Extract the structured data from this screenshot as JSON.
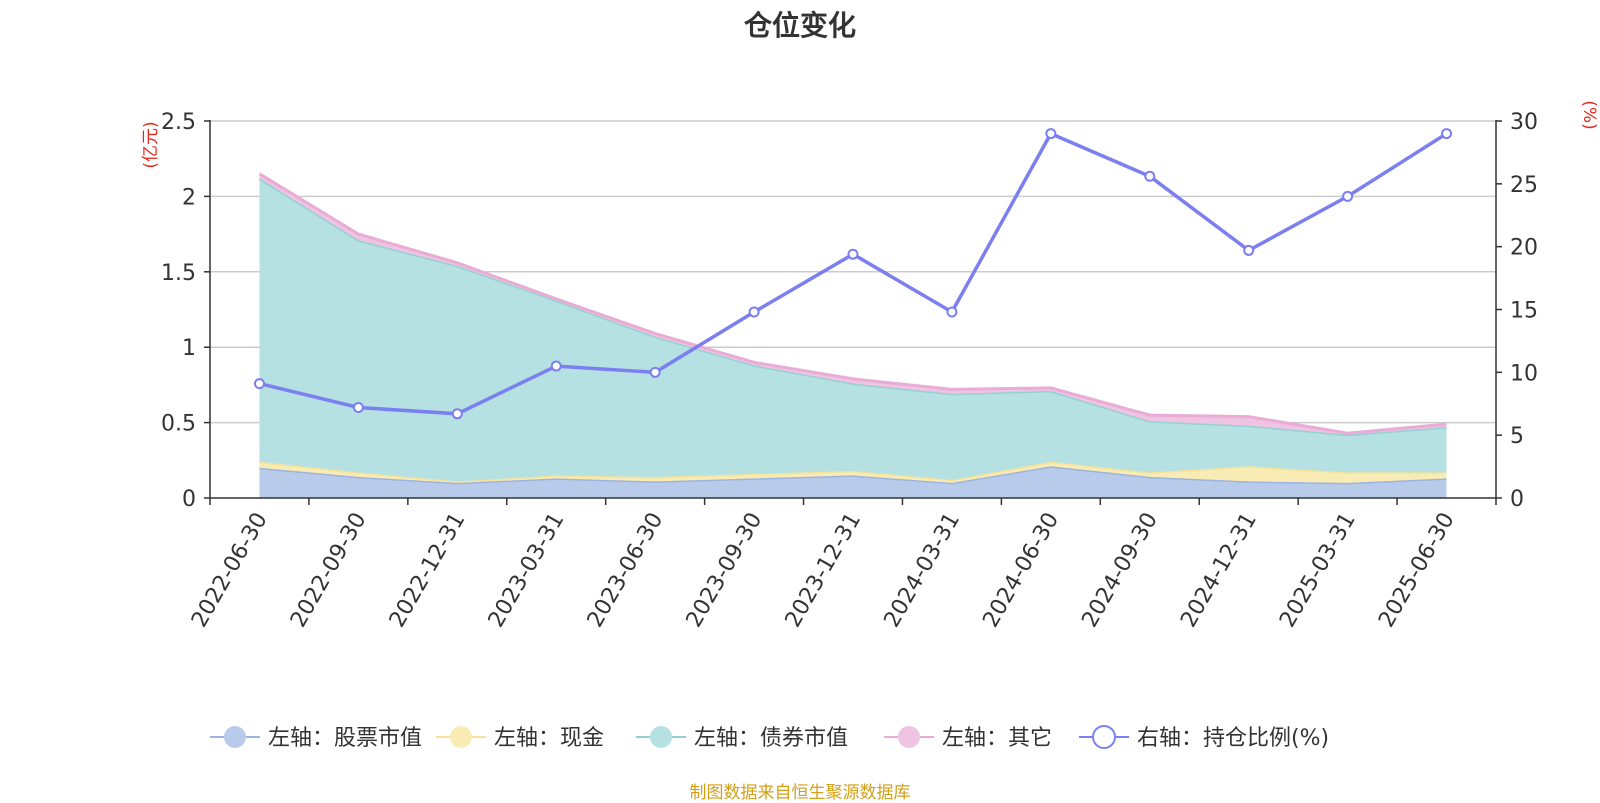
{
  "chart_data": {
    "type": "area",
    "title": "仓位变化",
    "x": [
      "2022-06-30",
      "2022-09-30",
      "2022-12-31",
      "2023-03-31",
      "2023-06-30",
      "2023-09-30",
      "2023-12-31",
      "2024-03-31",
      "2024-06-30",
      "2024-09-30",
      "2024-12-31",
      "2025-03-31",
      "2025-06-30"
    ],
    "y_left": {
      "unit": "(亿元)",
      "range": [
        0,
        2.5
      ],
      "ticks": [
        "0",
        "0.5",
        "1",
        "1.5",
        "2",
        "2.5"
      ]
    },
    "y_right": {
      "unit": "(%)",
      "range": [
        0,
        30
      ],
      "ticks": [
        "0",
        "5",
        "10",
        "15",
        "20",
        "25",
        "30"
      ]
    },
    "stacked_series": [
      {
        "name": "左轴：股票市值",
        "color": "#9db4e0",
        "fill": "#b9cbeb",
        "values": [
          0.2,
          0.14,
          0.1,
          0.13,
          0.11,
          0.13,
          0.15,
          0.1,
          0.21,
          0.14,
          0.11,
          0.1,
          0.13
        ]
      },
      {
        "name": "左轴：现金",
        "color": "#f5e39b",
        "fill": "#f8ebb4",
        "values": [
          0.04,
          0.03,
          0.01,
          0.02,
          0.03,
          0.03,
          0.03,
          0.02,
          0.03,
          0.03,
          0.1,
          0.07,
          0.04
        ]
      },
      {
        "name": "左轴：债券市值",
        "color": "#94d1d2",
        "fill": "#b5e1e2",
        "values": [
          1.88,
          1.54,
          1.43,
          1.16,
          0.93,
          0.72,
          0.58,
          0.57,
          0.47,
          0.34,
          0.27,
          0.25,
          0.3
        ]
      },
      {
        "name": "左轴：其它",
        "color": "#e9acd6",
        "fill": "#efc3e2",
        "values": [
          0.03,
          0.04,
          0.02,
          0.01,
          0.02,
          0.02,
          0.03,
          0.03,
          0.02,
          0.04,
          0.06,
          0.01,
          0.02
        ]
      }
    ],
    "line_series": {
      "name": "右轴：持仓比例(%)",
      "color": "#7b7ff0",
      "axis": "right",
      "values": [
        9.1,
        7.2,
        6.7,
        10.5,
        10.0,
        14.8,
        19.4,
        14.8,
        29.0,
        25.6,
        19.7,
        24.0,
        29.0
      ]
    },
    "legend_position": "bottom",
    "grid": true
  },
  "footer": "制图数据来自恒生聚源数据库"
}
